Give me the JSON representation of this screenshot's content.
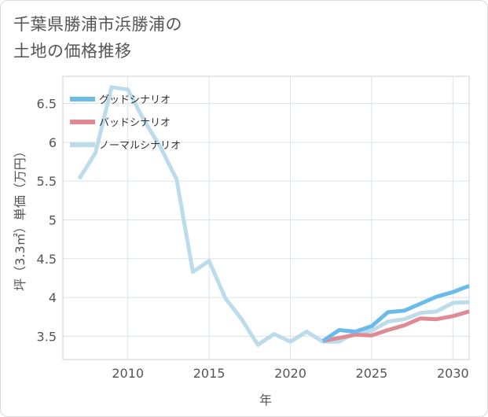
{
  "title_line1": "千葉県勝浦市浜勝浦の",
  "title_line2": "土地の価格推移",
  "chart_data": {
    "type": "line",
    "title": "千葉県勝浦市浜勝浦の土地の価格推移",
    "xlabel": "年",
    "ylabel": "坪（3.3㎡）単価（万円）",
    "xlim": [
      2006,
      2031
    ],
    "ylim": [
      3.2,
      6.85
    ],
    "xticks": [
      2010,
      2015,
      2020,
      2025,
      2030
    ],
    "yticks": [
      3.5,
      4,
      4.5,
      5,
      5.5,
      6,
      6.5
    ],
    "legend_position": "top-left",
    "series": [
      {
        "name": "グッドシナリオ",
        "color": "#6bbbea",
        "x": [
          2022,
          2023,
          2024,
          2025,
          2026,
          2027,
          2028,
          2029,
          2030,
          2031
        ],
        "y": [
          3.44,
          3.58,
          3.56,
          3.63,
          3.81,
          3.83,
          3.92,
          4.01,
          4.07,
          4.15
        ]
      },
      {
        "name": "バッドシナリオ",
        "color": "#e08a93",
        "x": [
          2022,
          2023,
          2024,
          2025,
          2026,
          2027,
          2028,
          2029,
          2030,
          2031
        ],
        "y": [
          3.44,
          3.48,
          3.52,
          3.51,
          3.58,
          3.64,
          3.73,
          3.72,
          3.76,
          3.82
        ]
      },
      {
        "name": "ノーマルシナリオ",
        "color": "#bcdcec",
        "x": [
          2007,
          2008,
          2009,
          2010,
          2011,
          2012,
          2013,
          2014,
          2015,
          2016,
          2017,
          2018,
          2019,
          2020,
          2021,
          2022,
          2023,
          2024,
          2025,
          2026,
          2027,
          2028,
          2029,
          2030,
          2031
        ],
        "y": [
          5.53,
          5.86,
          6.71,
          6.68,
          6.28,
          5.94,
          5.52,
          4.33,
          4.47,
          3.99,
          3.72,
          3.39,
          3.53,
          3.43,
          3.56,
          3.43,
          3.43,
          3.55,
          3.57,
          3.69,
          3.72,
          3.8,
          3.82,
          3.93,
          3.94
        ]
      }
    ]
  }
}
